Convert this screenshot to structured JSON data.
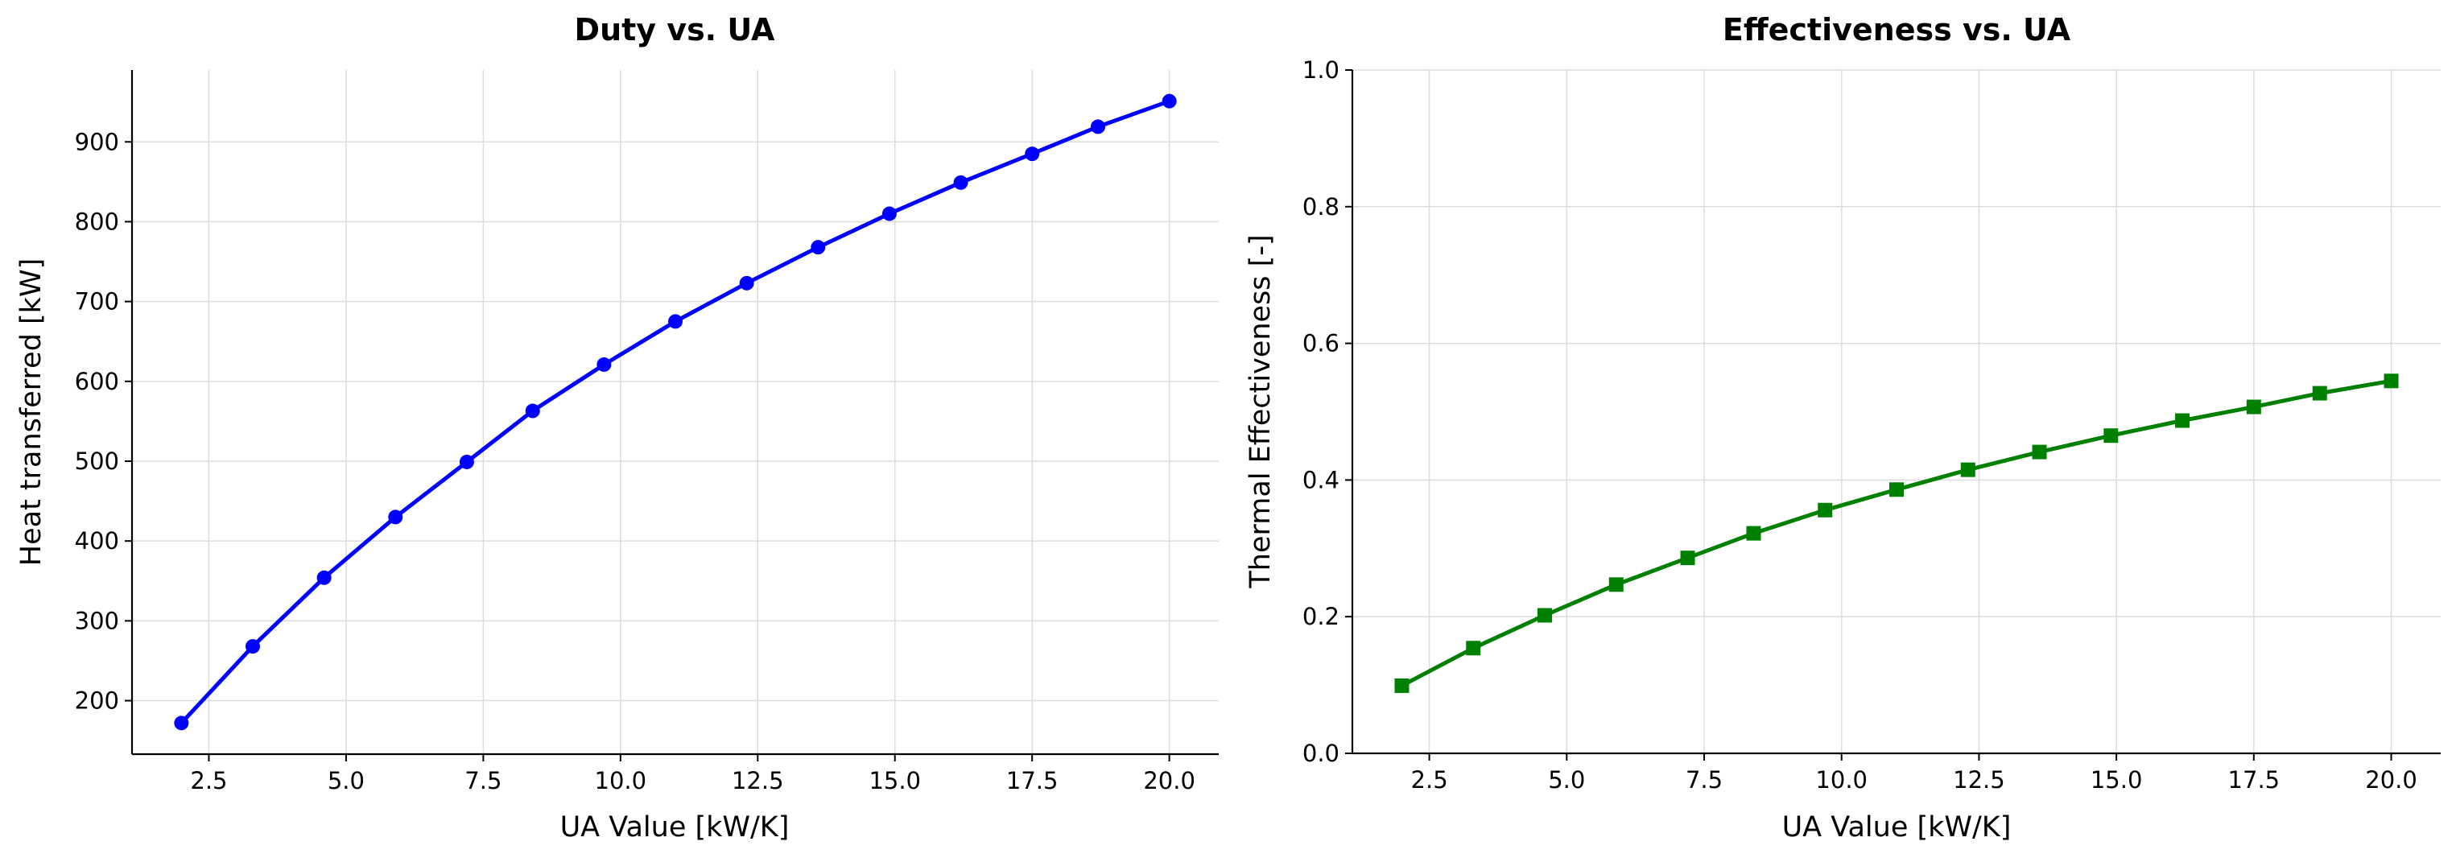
{
  "chart_data": [
    {
      "type": "line",
      "title": "Duty vs. UA",
      "xlabel": "UA Value [kW/K]",
      "ylabel": "Heat transferred [kW]",
      "xlim": [
        1.1,
        20.9
      ],
      "ylim": [
        133,
        990
      ],
      "xticks": [
        2.5,
        5.0,
        7.5,
        10.0,
        12.5,
        15.0,
        17.5,
        20.0
      ],
      "xtick_labels": [
        "2.5",
        "5.0",
        "7.5",
        "10.0",
        "12.5",
        "15.0",
        "17.5",
        "20.0"
      ],
      "yticks": [
        200,
        300,
        400,
        500,
        600,
        700,
        800,
        900
      ],
      "ytick_labels": [
        "200",
        "300",
        "400",
        "500",
        "600",
        "700",
        "800",
        "900"
      ],
      "grid": true,
      "color": "#0000ff",
      "marker": "circle",
      "series": [
        {
          "x": [
            2.0,
            3.3,
            4.6,
            5.9,
            7.2,
            8.4,
            9.7,
            11.0,
            12.3,
            13.6,
            14.9,
            16.2,
            17.5,
            18.7,
            20.0
          ],
          "values": [
            172,
            268,
            354,
            430,
            499,
            563,
            621,
            675,
            723,
            768,
            810,
            849,
            885,
            919,
            951
          ]
        }
      ]
    },
    {
      "type": "line",
      "title": "Effectiveness vs. UA",
      "xlabel": "UA Value [kW/K]",
      "ylabel": "Thermal Effectiveness [-]",
      "xlim": [
        1.1,
        20.9
      ],
      "ylim": [
        0.0,
        1.0
      ],
      "xticks": [
        2.5,
        5.0,
        7.5,
        10.0,
        12.5,
        15.0,
        17.5,
        20.0
      ],
      "xtick_labels": [
        "2.5",
        "5.0",
        "7.5",
        "10.0",
        "12.5",
        "15.0",
        "17.5",
        "20.0"
      ],
      "yticks": [
        0.0,
        0.2,
        0.4,
        0.6,
        0.8,
        1.0
      ],
      "ytick_labels": [
        "0.0",
        "0.2",
        "0.4",
        "0.6",
        "0.8",
        "1.0"
      ],
      "grid": true,
      "color": "#008000",
      "marker": "square",
      "series": [
        {
          "x": [
            2.0,
            3.3,
            4.6,
            5.9,
            7.2,
            8.4,
            9.7,
            11.0,
            12.3,
            13.6,
            14.9,
            16.2,
            17.5,
            18.7,
            20.0
          ],
          "values": [
            0.099,
            0.154,
            0.202,
            0.247,
            0.286,
            0.322,
            0.356,
            0.386,
            0.415,
            0.441,
            0.465,
            0.487,
            0.507,
            0.527,
            0.545
          ]
        }
      ]
    }
  ]
}
